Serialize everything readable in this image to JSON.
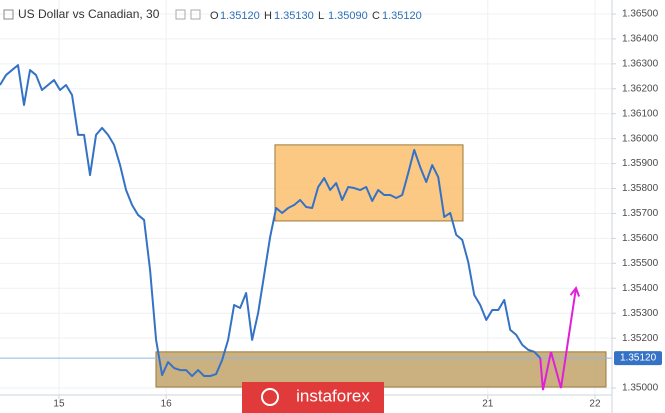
{
  "chart_data": {
    "type": "line",
    "header": {
      "title": "US Dollar vs Canadian, 30",
      "fields": [
        {
          "key": "O",
          "value": "1.35120"
        },
        {
          "key": "H",
          "value": "1.35130"
        },
        {
          "key": "L",
          "value": "1.35090"
        },
        {
          "key": "C",
          "value": "1.35120"
        }
      ]
    },
    "watermark": "instaforex",
    "x": [
      -0.55,
      -0.494,
      -0.438,
      -0.382,
      -0.326,
      -0.27,
      -0.214,
      -0.158,
      -0.102,
      -0.046,
      0.01,
      0.066,
      0.122,
      0.178,
      0.234,
      0.29,
      0.346,
      0.402,
      0.458,
      0.514,
      0.57,
      0.626,
      0.682,
      0.738,
      0.794,
      0.85,
      0.906,
      0.962,
      1.018,
      1.074,
      1.13,
      1.186,
      1.242,
      1.298,
      1.354,
      1.41,
      1.466,
      1.522,
      1.578,
      1.634,
      1.69,
      1.746,
      1.802,
      1.858,
      1.914,
      1.97,
      2.026,
      2.082,
      2.138,
      2.194,
      2.25,
      2.306,
      2.362,
      2.418,
      2.474,
      2.53,
      2.586,
      2.642,
      2.698,
      2.754,
      2.81,
      2.866,
      2.922,
      2.978,
      3.034,
      3.09,
      3.146,
      3.202,
      3.258,
      3.314,
      3.37,
      3.426,
      3.482,
      3.538,
      3.594,
      3.65,
      3.706,
      3.762,
      3.818,
      3.874,
      3.93,
      3.986,
      4.042,
      4.098,
      4.154,
      4.21,
      4.266,
      4.322,
      4.378,
      4.434,
      4.49
    ],
    "series": [
      {
        "color": "#3572c6",
        "values": [
          1.36215,
          1.36255,
          1.36275,
          1.36295,
          1.36135,
          1.36275,
          1.36255,
          1.36195,
          1.36215,
          1.36235,
          1.36195,
          1.36215,
          1.36175,
          1.36015,
          1.36015,
          1.35854,
          1.36015,
          1.36043,
          1.36015,
          1.35975,
          1.35894,
          1.35794,
          1.35734,
          1.35694,
          1.35674,
          1.35473,
          1.35193,
          1.35052,
          1.35104,
          1.3508,
          1.35072,
          1.35072,
          1.35048,
          1.35072,
          1.35048,
          1.35048,
          1.35056,
          1.35112,
          1.35193,
          1.35333,
          1.35321,
          1.35381,
          1.35193,
          1.35301,
          1.35453,
          1.35606,
          1.35722,
          1.35702,
          1.35722,
          1.35734,
          1.35754,
          1.35726,
          1.35722,
          1.35806,
          1.35842,
          1.35794,
          1.35822,
          1.35754,
          1.35806,
          1.35802,
          1.35794,
          1.35806,
          1.3575,
          1.35794,
          1.35774,
          1.35774,
          1.35762,
          1.35774,
          1.35862,
          1.35955,
          1.35886,
          1.35826,
          1.35894,
          1.35846,
          1.35686,
          1.35702,
          1.35614,
          1.35594,
          1.35505,
          1.35373,
          1.35333,
          1.35273,
          1.35313,
          1.35313,
          1.35353,
          1.35233,
          1.35213,
          1.35173,
          1.35153,
          1.35145,
          1.3512
        ]
      }
    ],
    "forecast": {
      "color": "#e020d8",
      "x": [
        4.49,
        4.515,
        4.59,
        4.683,
        4.823
      ],
      "values": [
        1.3512,
        1.34992,
        1.35145,
        1.35,
        1.35401
      ]
    },
    "zones": [
      {
        "color": "#fbbf6e",
        "x": [
          2.015,
          3.769
        ],
        "y": [
          1.3567,
          1.35975
        ]
      },
      {
        "color": "#c2a36a",
        "x": [
          0.905,
          5.103
        ],
        "y": [
          1.35004,
          1.35145
        ]
      }
    ],
    "last_price": {
      "value": 1.3512,
      "label": "1.35120"
    },
    "xlim": [
      -0.55,
      5.159
    ],
    "ylim": [
      1.34972,
      1.36556
    ],
    "xticks": [
      {
        "value": 0,
        "label": "15"
      },
      {
        "value": 1,
        "label": "16"
      },
      {
        "value": 4,
        "label": "21"
      },
      {
        "value": 5,
        "label": "22"
      }
    ],
    "yticks": [
      {
        "value": 1.35,
        "label": "1.35000"
      },
      {
        "value": 1.352,
        "label": "1.35200"
      },
      {
        "value": 1.353,
        "label": "1.35300"
      },
      {
        "value": 1.354,
        "label": "1.35400"
      },
      {
        "value": 1.355,
        "label": "1.35500"
      },
      {
        "value": 1.356,
        "label": "1.35600"
      },
      {
        "value": 1.357,
        "label": "1.35700"
      },
      {
        "value": 1.358,
        "label": "1.35800"
      },
      {
        "value": 1.359,
        "label": "1.35900"
      },
      {
        "value": 1.36,
        "label": "1.36000"
      },
      {
        "value": 1.361,
        "label": "1.36100"
      },
      {
        "value": 1.362,
        "label": "1.36200"
      },
      {
        "value": 1.363,
        "label": "1.36300"
      },
      {
        "value": 1.364,
        "label": "1.36400"
      },
      {
        "value": 1.365,
        "label": "1.36500"
      }
    ],
    "grid": true
  }
}
